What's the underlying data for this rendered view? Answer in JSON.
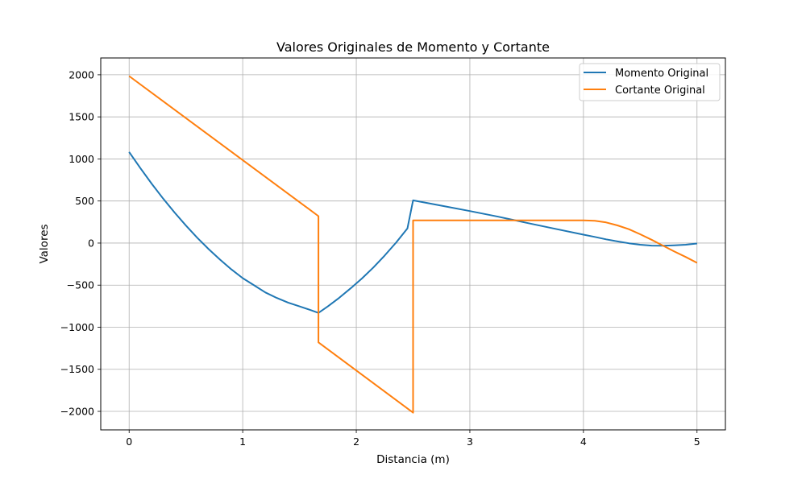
{
  "chart_data": {
    "type": "line",
    "title": "Valores Originales de Momento y Cortante",
    "xlabel": "Distancia (m)",
    "ylabel": "Valores",
    "xlim": [
      -0.25,
      5.25
    ],
    "ylim": [
      -2220,
      2200
    ],
    "x_ticks": [
      0,
      1,
      2,
      3,
      4,
      5
    ],
    "x_tick_labels": [
      "0",
      "1",
      "2",
      "3",
      "4",
      "5"
    ],
    "y_ticks": [
      2000,
      1500,
      1000,
      500,
      0,
      -500,
      -1000,
      -1500,
      -2000
    ],
    "y_tick_labels": [
      "2000",
      "1500",
      "1000",
      "500",
      "0",
      "−500",
      "−1000",
      "−1500",
      "−2000"
    ],
    "grid": true,
    "legend_position": "top-right",
    "series": [
      {
        "name": "Momento Original",
        "color": "#1f77b4",
        "x": [
          0,
          0.1,
          0.2,
          0.3,
          0.4,
          0.5,
          0.6,
          0.7,
          0.8,
          0.9,
          1.0,
          1.1,
          1.2,
          1.3,
          1.4,
          1.5,
          1.6,
          1.667,
          1.75,
          1.85,
          1.95,
          2.05,
          2.15,
          2.25,
          2.35,
          2.45,
          2.5,
          2.75,
          3.0,
          3.25,
          3.5,
          3.75,
          4.0,
          4.1,
          4.2,
          4.3,
          4.4,
          4.5,
          4.6,
          4.7,
          4.8,
          4.9,
          5.0
        ],
        "y": [
          1083,
          888,
          703,
          528,
          363,
          208,
          63,
          -72,
          -197,
          -312,
          -417,
          -502,
          -587,
          -652,
          -707,
          -752,
          -797,
          -830,
          -752,
          -650,
          -538,
          -420,
          -290,
          -148,
          5,
          175,
          508,
          444,
          380,
          313,
          241,
          170,
          100,
          73,
          45,
          20,
          -2,
          -20,
          -30,
          -32,
          -27,
          -20,
          -5
        ]
      },
      {
        "name": "Cortante Original",
        "color": "#ff7f0e",
        "x": [
          0,
          1.667,
          1.667,
          2.5,
          2.5,
          2.75,
          3.0,
          3.5,
          4.0,
          4.1,
          4.2,
          4.3,
          4.4,
          4.5,
          4.6,
          4.7,
          4.8,
          4.9,
          5.0
        ],
        "y": [
          1985,
          320,
          -1180,
          -2015,
          270,
          270,
          270,
          270,
          270,
          265,
          245,
          210,
          165,
          105,
          40,
          -30,
          -100,
          -165,
          -235
        ]
      }
    ]
  }
}
